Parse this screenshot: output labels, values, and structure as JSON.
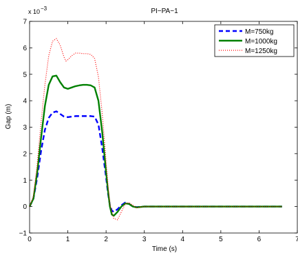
{
  "chart_data": {
    "type": "line",
    "title": "PI−PA−1",
    "xlabel": "Time (s)",
    "ylabel": "Gap (m)",
    "y_exponent_label": "x 10",
    "y_exponent_power": "−3",
    "xlim": [
      0,
      7
    ],
    "ylim": [
      -1,
      7
    ],
    "x_ticks": [
      "0",
      "1",
      "2",
      "3",
      "4",
      "5",
      "6",
      "7"
    ],
    "y_ticks": [
      "−1",
      "0",
      "1",
      "2",
      "3",
      "4",
      "5",
      "6",
      "7"
    ],
    "legend_placement": "top-right",
    "grid": false,
    "series": [
      {
        "name": "M=750kg",
        "color": "#0000ff",
        "style": "dashed",
        "points": [
          [
            0,
            0
          ],
          [
            0.1,
            0.3
          ],
          [
            0.2,
            1.1
          ],
          [
            0.3,
            2.1
          ],
          [
            0.4,
            2.9
          ],
          [
            0.5,
            3.35
          ],
          [
            0.6,
            3.55
          ],
          [
            0.7,
            3.6
          ],
          [
            0.8,
            3.5
          ],
          [
            0.9,
            3.4
          ],
          [
            1.0,
            3.38
          ],
          [
            1.1,
            3.4
          ],
          [
            1.2,
            3.42
          ],
          [
            1.4,
            3.42
          ],
          [
            1.6,
            3.42
          ],
          [
            1.7,
            3.4
          ],
          [
            1.8,
            3.1
          ],
          [
            1.9,
            2.2
          ],
          [
            2.0,
            1.1
          ],
          [
            2.05,
            0.5
          ],
          [
            2.1,
            0.05
          ],
          [
            2.15,
            -0.15
          ],
          [
            2.2,
            -0.2
          ],
          [
            2.3,
            -0.1
          ],
          [
            2.4,
            0.05
          ],
          [
            2.5,
            0.15
          ],
          [
            2.6,
            0.1
          ],
          [
            2.7,
            0.0
          ],
          [
            2.8,
            -0.02
          ],
          [
            3.0,
            0.0
          ],
          [
            3.5,
            0.0
          ],
          [
            4.0,
            0.0
          ],
          [
            5.0,
            0.0
          ],
          [
            6.0,
            0.0
          ],
          [
            6.6,
            0.0
          ]
        ]
      },
      {
        "name": "M=1000kg",
        "color": "#008000",
        "style": "solid",
        "points": [
          [
            0,
            0
          ],
          [
            0.1,
            0.3
          ],
          [
            0.2,
            1.3
          ],
          [
            0.3,
            2.6
          ],
          [
            0.4,
            3.8
          ],
          [
            0.5,
            4.6
          ],
          [
            0.6,
            4.92
          ],
          [
            0.7,
            4.95
          ],
          [
            0.8,
            4.7
          ],
          [
            0.9,
            4.5
          ],
          [
            1.0,
            4.45
          ],
          [
            1.1,
            4.5
          ],
          [
            1.2,
            4.55
          ],
          [
            1.3,
            4.58
          ],
          [
            1.4,
            4.6
          ],
          [
            1.5,
            4.6
          ],
          [
            1.6,
            4.58
          ],
          [
            1.7,
            4.5
          ],
          [
            1.8,
            4.0
          ],
          [
            1.9,
            2.8
          ],
          [
            2.0,
            1.3
          ],
          [
            2.05,
            0.6
          ],
          [
            2.1,
            0.0
          ],
          [
            2.15,
            -0.3
          ],
          [
            2.2,
            -0.35
          ],
          [
            2.3,
            -0.2
          ],
          [
            2.4,
            0.0
          ],
          [
            2.5,
            0.12
          ],
          [
            2.6,
            0.1
          ],
          [
            2.7,
            0.0
          ],
          [
            2.8,
            -0.03
          ],
          [
            3.0,
            0.0
          ],
          [
            3.5,
            0.0
          ],
          [
            4.0,
            0.0
          ],
          [
            5.0,
            0.0
          ],
          [
            6.0,
            0.0
          ],
          [
            6.6,
            0.0
          ]
        ]
      },
      {
        "name": "M=1250kg",
        "color": "#ff0000",
        "style": "dotted",
        "points": [
          [
            0,
            0
          ],
          [
            0.1,
            0.4
          ],
          [
            0.2,
            1.6
          ],
          [
            0.3,
            3.2
          ],
          [
            0.4,
            4.6
          ],
          [
            0.5,
            5.7
          ],
          [
            0.6,
            6.25
          ],
          [
            0.7,
            6.35
          ],
          [
            0.8,
            6.1
          ],
          [
            0.9,
            5.65
          ],
          [
            0.95,
            5.5
          ],
          [
            1.0,
            5.55
          ],
          [
            1.1,
            5.7
          ],
          [
            1.2,
            5.8
          ],
          [
            1.3,
            5.8
          ],
          [
            1.4,
            5.78
          ],
          [
            1.5,
            5.78
          ],
          [
            1.6,
            5.75
          ],
          [
            1.7,
            5.6
          ],
          [
            1.8,
            4.9
          ],
          [
            1.9,
            3.5
          ],
          [
            2.0,
            1.7
          ],
          [
            2.05,
            0.8
          ],
          [
            2.1,
            0.1
          ],
          [
            2.2,
            -0.45
          ],
          [
            2.3,
            -0.5
          ],
          [
            2.4,
            -0.2
          ],
          [
            2.5,
            0.1
          ],
          [
            2.6,
            0.15
          ],
          [
            2.7,
            0.05
          ],
          [
            2.8,
            -0.05
          ],
          [
            2.9,
            -0.02
          ],
          [
            3.0,
            0.0
          ],
          [
            3.5,
            0.0
          ],
          [
            4.0,
            0.0
          ],
          [
            5.0,
            0.0
          ],
          [
            6.0,
            0.0
          ],
          [
            6.6,
            0.0
          ]
        ]
      }
    ]
  }
}
